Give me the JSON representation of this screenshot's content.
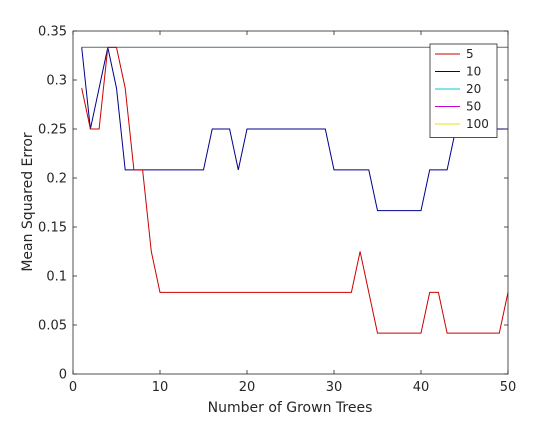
{
  "chart_data": {
    "type": "line",
    "xlabel": "Number of Grown Trees",
    "ylabel": "Mean Squared Error",
    "xlim": [
      0,
      50
    ],
    "ylim": [
      0,
      0.35
    ],
    "xticks": [
      0,
      10,
      20,
      30,
      40,
      50
    ],
    "xtick_labels": [
      "0",
      "10",
      "20",
      "30",
      "40",
      "50"
    ],
    "yticks": [
      0,
      0.05,
      0.1,
      0.15,
      0.2,
      0.25,
      0.3,
      0.35
    ],
    "ytick_labels": [
      "0",
      "0.05",
      "0.1",
      "0.15",
      "0.2",
      "0.25",
      "0.3",
      "0.35"
    ],
    "grid": false,
    "legend_position": "top-right",
    "series": [
      {
        "name": "5",
        "color": "#cc0000",
        "x": [
          1,
          2,
          3,
          4,
          5,
          6,
          7,
          8,
          9,
          10,
          11,
          12,
          13,
          14,
          15,
          16,
          17,
          18,
          19,
          20,
          21,
          22,
          23,
          24,
          25,
          26,
          27,
          28,
          29,
          30,
          31,
          32,
          33,
          34,
          35,
          36,
          37,
          38,
          39,
          40,
          41,
          42,
          43,
          44,
          45,
          46,
          47,
          48,
          49,
          50
        ],
        "y": [
          0.2917,
          0.25,
          0.25,
          0.3333,
          0.3333,
          0.2917,
          0.2083,
          0.2083,
          0.125,
          0.0833,
          0.0833,
          0.0833,
          0.0833,
          0.0833,
          0.0833,
          0.0833,
          0.0833,
          0.0833,
          0.0833,
          0.0833,
          0.0833,
          0.0833,
          0.0833,
          0.0833,
          0.0833,
          0.0833,
          0.0833,
          0.0833,
          0.0833,
          0.0833,
          0.0833,
          0.0833,
          0.125,
          0.0833,
          0.0417,
          0.0417,
          0.0417,
          0.0417,
          0.0417,
          0.0417,
          0.0833,
          0.0833,
          0.0417,
          0.0417,
          0.0417,
          0.0417,
          0.0417,
          0.0417,
          0.0417,
          0.0833
        ]
      },
      {
        "name": "10",
        "color": "#00008b",
        "x": [
          1,
          2,
          3,
          4,
          5,
          6,
          7,
          8,
          9,
          10,
          11,
          12,
          13,
          14,
          15,
          16,
          17,
          18,
          19,
          20,
          21,
          22,
          23,
          24,
          25,
          26,
          27,
          28,
          29,
          30,
          31,
          32,
          33,
          34,
          35,
          36,
          37,
          38,
          39,
          40,
          41,
          42,
          43,
          44,
          45,
          46,
          47,
          48,
          49,
          50
        ],
        "y": [
          0.3333,
          0.25,
          0.2917,
          0.3333,
          0.2917,
          0.2083,
          0.2083,
          0.2083,
          0.2083,
          0.2083,
          0.2083,
          0.2083,
          0.2083,
          0.2083,
          0.2083,
          0.25,
          0.25,
          0.25,
          0.2083,
          0.25,
          0.25,
          0.25,
          0.25,
          0.25,
          0.25,
          0.25,
          0.25,
          0.25,
          0.25,
          0.2083,
          0.2083,
          0.2083,
          0.2083,
          0.2083,
          0.1667,
          0.1667,
          0.1667,
          0.1667,
          0.1667,
          0.1667,
          0.2083,
          0.2083,
          0.2083,
          0.25,
          0.25,
          0.25,
          0.25,
          0.25,
          0.25,
          0.25
        ]
      },
      {
        "name": "20",
        "color": "#00cccc",
        "x": [
          1,
          50
        ],
        "y": [
          0.3333,
          0.3333
        ]
      },
      {
        "name": "50",
        "color": "#cc00cc",
        "x": [
          1,
          50
        ],
        "y": [
          0.3333,
          0.3333
        ]
      },
      {
        "name": "100",
        "color": "#e6e600",
        "x": [
          1,
          50
        ],
        "y": [
          0.3333,
          0.3333
        ]
      }
    ]
  }
}
